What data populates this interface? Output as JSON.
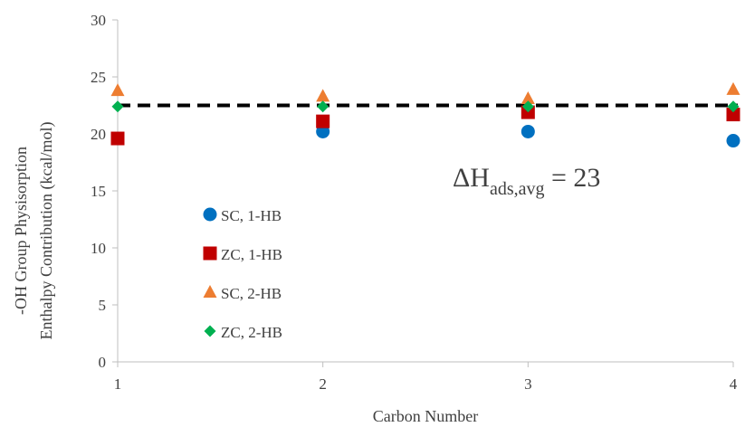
{
  "chart_data": {
    "type": "scatter",
    "xlabel": "Carbon Number",
    "ylabel_lines": [
      "-OH Group Physisorption",
      "Enthalpy Contribution (kcal/mol)"
    ],
    "xlim": [
      1,
      4
    ],
    "ylim": [
      0,
      30
    ],
    "x_ticks": [
      "1",
      "2",
      "3",
      "4"
    ],
    "y_ticks": [
      "0",
      "5",
      "10",
      "15",
      "20",
      "25",
      "30"
    ],
    "grid": false,
    "legend_position": "left",
    "series": [
      {
        "name": "SC, 1-HB",
        "marker": "circle",
        "color": "#0070c0",
        "points": [
          [
            2,
            20.2
          ],
          [
            3,
            20.2
          ],
          [
            4,
            19.4
          ]
        ]
      },
      {
        "name": "ZC, 1-HB",
        "marker": "square",
        "color": "#c00000",
        "points": [
          [
            1,
            19.6
          ],
          [
            2,
            21.1
          ],
          [
            3,
            21.9
          ],
          [
            4,
            21.7
          ]
        ]
      },
      {
        "name": "SC, 2-HB",
        "marker": "triangle",
        "color": "#ed7d31",
        "points": [
          [
            1,
            23.8
          ],
          [
            2,
            23.3
          ],
          [
            3,
            23.1
          ],
          [
            4,
            23.9
          ]
        ]
      },
      {
        "name": "ZC, 2-HB",
        "marker": "diamond",
        "color": "#00b050",
        "points": [
          [
            1,
            22.4
          ],
          [
            2,
            22.4
          ],
          [
            3,
            22.4
          ],
          [
            4,
            22.4
          ]
        ]
      }
    ],
    "reference_line": {
      "y": 22.5,
      "style": "dashed",
      "color": "#000000"
    },
    "annotation": {
      "main": "ΔH",
      "subscript": "ads,avg",
      "suffix": " = 23"
    }
  }
}
